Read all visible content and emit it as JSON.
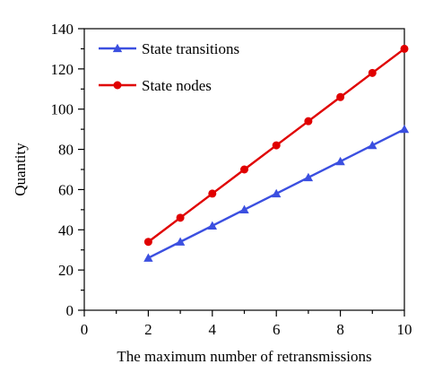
{
  "chart_data": {
    "type": "line",
    "xlabel": "The maximum number of retransmissions",
    "ylabel": "Quantity",
    "xlim": [
      0,
      10
    ],
    "ylim": [
      0,
      140
    ],
    "xticks": [
      0,
      2,
      4,
      6,
      8,
      10
    ],
    "yticks": [
      0,
      20,
      40,
      60,
      80,
      100,
      120,
      140
    ],
    "grid": false,
    "legend_position": "top-left",
    "x": [
      2,
      3,
      4,
      5,
      6,
      7,
      8,
      9,
      10
    ],
    "series": [
      {
        "name": "State transitions",
        "color": "#3b4fe0",
        "marker": "triangle",
        "values": [
          26,
          34,
          42,
          50,
          58,
          66,
          74,
          82,
          90
        ]
      },
      {
        "name": "State nodes",
        "color": "#e00000",
        "marker": "circle",
        "values": [
          34,
          46,
          58,
          70,
          82,
          94,
          106,
          118,
          130
        ]
      }
    ]
  }
}
